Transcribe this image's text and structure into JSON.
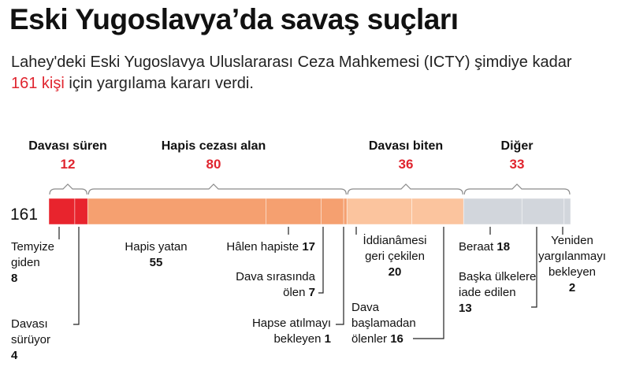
{
  "header": {
    "title": "Eski Yugoslavya’da savaş suçları",
    "subtitle_part1": "Lahey'deki Eski Yugoslavya Uluslararası Ceza Mahkemesi (ICTY) şimdiye kadar ",
    "subtitle_highlight": "161 kişi",
    "subtitle_part2": " için yargılama kararı verdi."
  },
  "colors": {
    "highlight": "#e0252f",
    "groups": [
      "#e8242d",
      "#f5a070",
      "#fbc49e",
      "#d2d6dc"
    ]
  },
  "chart_data": {
    "type": "bar",
    "orientation": "horizontal-stacked-single",
    "total": 161,
    "total_label": "161",
    "groups": [
      {
        "name": "Davası süren",
        "value": "12",
        "color": "#e8242d",
        "segments": [
          {
            "label": "Temyize\ngiden",
            "value": 8
          },
          {
            "label": "Davası\nsürüyor",
            "value": 4
          }
        ]
      },
      {
        "name": "Hapis cezası alan",
        "value": "80",
        "color": "#f5a070",
        "segments": [
          {
            "label": "Hapis yatan",
            "value": 55
          },
          {
            "label": "Hâlen hapiste",
            "value": 17
          },
          {
            "label": "Dava sırasında\nölen",
            "value": 7
          },
          {
            "label": "Hapse atılmayı\nbekleyen",
            "value": 1
          }
        ]
      },
      {
        "name": "Davası biten",
        "value": "36",
        "color": "#fbc49e",
        "segments": [
          {
            "label": "İddianâmesi\ngeri çekilen",
            "value": 20
          },
          {
            "label": "Dava\nbaşlamadan\nölenler",
            "value": 16
          }
        ]
      },
      {
        "name": "Diğer",
        "value": "33",
        "color": "#d2d6dc",
        "segments": [
          {
            "label": "Beraat",
            "value": 18
          },
          {
            "label": "Başka ülkelere\niade edilen",
            "value": 13
          },
          {
            "label": "Yeniden\nyargılanmayı\nbekleyen",
            "value": 2
          }
        ]
      }
    ]
  }
}
